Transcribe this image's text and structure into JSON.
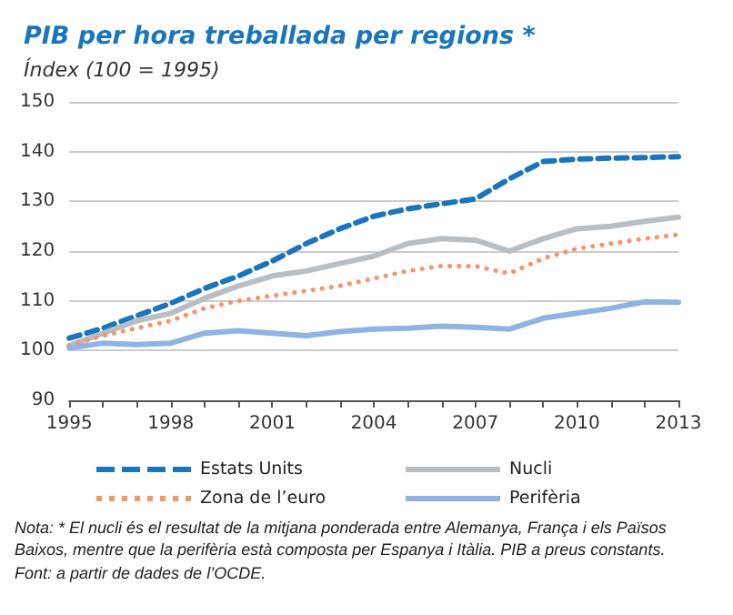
{
  "chart_data": {
    "type": "line",
    "title": "PIB per hora treballada per regions *",
    "subtitle": "Índex (100 = 1995)",
    "x": [
      1995,
      1996,
      1997,
      1998,
      1999,
      2000,
      2001,
      2002,
      2003,
      2004,
      2005,
      2006,
      2007,
      2008,
      2009,
      2010,
      2011,
      2012,
      2013
    ],
    "xlim": [
      1995,
      2013
    ],
    "xticks": [
      1995,
      {
        "value": 1996,
        "label": null
      },
      {
        "value": 1997,
        "label": null
      },
      1998,
      {
        "value": 1999,
        "label": null
      },
      {
        "value": 2000,
        "label": null
      },
      2001,
      {
        "value": 2002,
        "label": null
      },
      {
        "value": 2003,
        "label": null
      },
      2004,
      {
        "value": 2005,
        "label": null
      },
      {
        "value": 2006,
        "label": null
      },
      2007,
      {
        "value": 2008,
        "label": null
      },
      {
        "value": 2009,
        "label": null
      },
      2010,
      {
        "value": 2011,
        "label": null
      },
      {
        "value": 2012,
        "label": null
      },
      2013
    ],
    "ylim": [
      90,
      150
    ],
    "yticks": [
      90,
      100,
      110,
      120,
      130,
      140,
      150
    ],
    "series": [
      {
        "name": "Estats Units",
        "color": "#1a75bc",
        "line_style": "dashed",
        "values": [
          102.5,
          104.5,
          107,
          109.5,
          112.5,
          115,
          118,
          121.5,
          124.5,
          127,
          128.5,
          129.5,
          130.5,
          134.5,
          138,
          138.5,
          138.7,
          138.8,
          139
        ]
      },
      {
        "name": "Nucli",
        "color": "#b8bec2",
        "line_style": "solid",
        "values": [
          101,
          103.5,
          106,
          107.5,
          110.5,
          113,
          115,
          116,
          117.5,
          119,
          121.5,
          122.5,
          122.2,
          120,
          122.5,
          124.5,
          125,
          126,
          126.8
        ]
      },
      {
        "name": "Zona de l’euro",
        "color": "#f4956b",
        "line_style": "dotted",
        "values": [
          101,
          103,
          104.5,
          106,
          108.5,
          110,
          111,
          112,
          113,
          114.5,
          116,
          117,
          117,
          115.5,
          118.5,
          120.5,
          121.5,
          122.5,
          123.3
        ]
      },
      {
        "name": "Perifèria",
        "color": "#8fb4e3",
        "line_style": "solid",
        "values": [
          100.5,
          101.5,
          101.2,
          101.5,
          103.5,
          104,
          103.5,
          103,
          103.8,
          104.3,
          104.5,
          104.9,
          104.7,
          104.3,
          106.5,
          107.5,
          108.5,
          109.8,
          109.7
        ]
      }
    ],
    "grid": "y",
    "legend": "bottom",
    "marker": "none",
    "annotations": [
      "Nota: * El nucli és el resultat de la mitjana ponderada entre Alemanya, França i els Països Baixos, mentre que la perifèria està composta per Espanya i Itàlia. PIB a preus constants.",
      "Font: a partir de dades de l’OCDE."
    ]
  }
}
